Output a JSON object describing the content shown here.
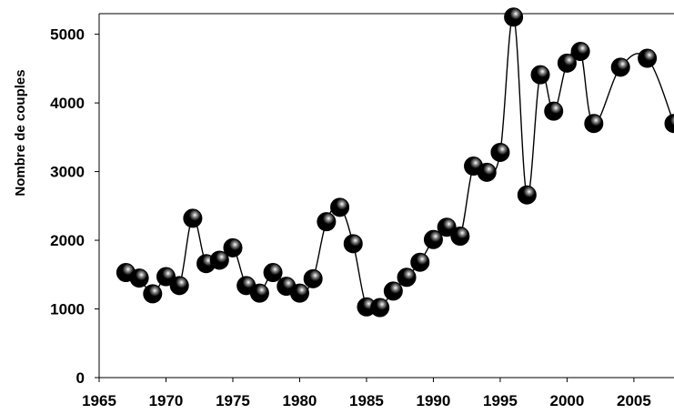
{
  "chart_data": {
    "type": "line",
    "title": "",
    "xlabel": "",
    "ylabel": "Nombre de couples",
    "xlim": [
      1965,
      2008
    ],
    "ylim": [
      0,
      5300
    ],
    "grid": false,
    "legend": "none",
    "x_ticks": [
      "1965",
      "1970",
      "1975",
      "1980",
      "1985",
      "1990",
      "1995",
      "2000",
      "2005"
    ],
    "y_ticks": [
      "0",
      "1000",
      "2000",
      "3000",
      "4000",
      "5000"
    ],
    "x": [
      1967,
      1968,
      1969,
      1970,
      1971,
      1972,
      1973,
      1974,
      1975,
      1976,
      1977,
      1978,
      1979,
      1980,
      1981,
      1982,
      1983,
      1984,
      1985,
      1986,
      1987,
      1988,
      1989,
      1990,
      1991,
      1992,
      1993,
      1994,
      1995,
      1996,
      1997,
      1998,
      1999,
      2000,
      2001,
      2002,
      2004,
      2006,
      2008
    ],
    "series": [
      {
        "values": [
          1530,
          1450,
          1220,
          1470,
          1340,
          2320,
          1660,
          1710,
          1890,
          1340,
          1230,
          1530,
          1330,
          1230,
          1440,
          2270,
          2480,
          1950,
          1030,
          1020,
          1260,
          1460,
          1680,
          2010,
          2190,
          2060,
          3080,
          2990,
          3280,
          5250,
          2660,
          4410,
          3880,
          4580,
          4750,
          3700,
          4520,
          4650,
          3700
        ]
      }
    ],
    "colors": {
      "line": "#000000",
      "marker": "#000000",
      "marker_highlight": "#ffffff",
      "axis": "#000000"
    }
  }
}
